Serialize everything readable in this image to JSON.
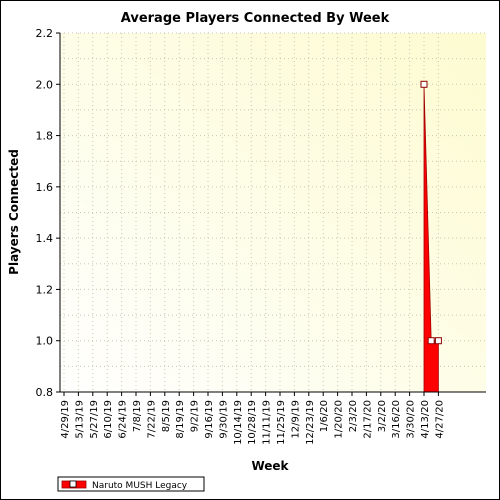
{
  "chart_data": {
    "type": "area",
    "title": "Average Players Connected By Week",
    "xlabel": "Week",
    "ylabel": "Players Connected",
    "ylim": [
      0.8,
      2.2
    ],
    "yticks": [
      "0.8",
      "1.0",
      "1.2",
      "1.4",
      "1.6",
      "1.8",
      "2.0",
      "2.2"
    ],
    "categories": [
      "4/29/19",
      "5/13/19",
      "5/27/19",
      "6/10/19",
      "6/24/19",
      "7/8/19",
      "7/22/19",
      "8/5/19",
      "8/19/19",
      "9/2/19",
      "9/16/19",
      "9/30/19",
      "10/14/19",
      "10/28/19",
      "11/11/19",
      "11/25/19",
      "12/9/19",
      "12/23/19",
      "1/6/20",
      "1/20/20",
      "2/3/20",
      "2/17/20",
      "3/2/20",
      "3/16/20",
      "3/30/20",
      "4/13/20",
      "4/27/20"
    ],
    "grid": true,
    "legend_position": "bottom-left",
    "series": [
      {
        "name": "Naruto MUSH Legacy",
        "color": "#ff0000",
        "x": [
          "4/13/20",
          "4/20/20",
          "4/27/20"
        ],
        "values": [
          2.0,
          1.0,
          1.0
        ]
      }
    ]
  },
  "colors": {
    "plot_bg_light": "#fefef6",
    "plot_bg_dark": "#fefcd2",
    "grid": "#c8c8b4",
    "series": "#ff0000",
    "series_edge": "#a00000"
  }
}
